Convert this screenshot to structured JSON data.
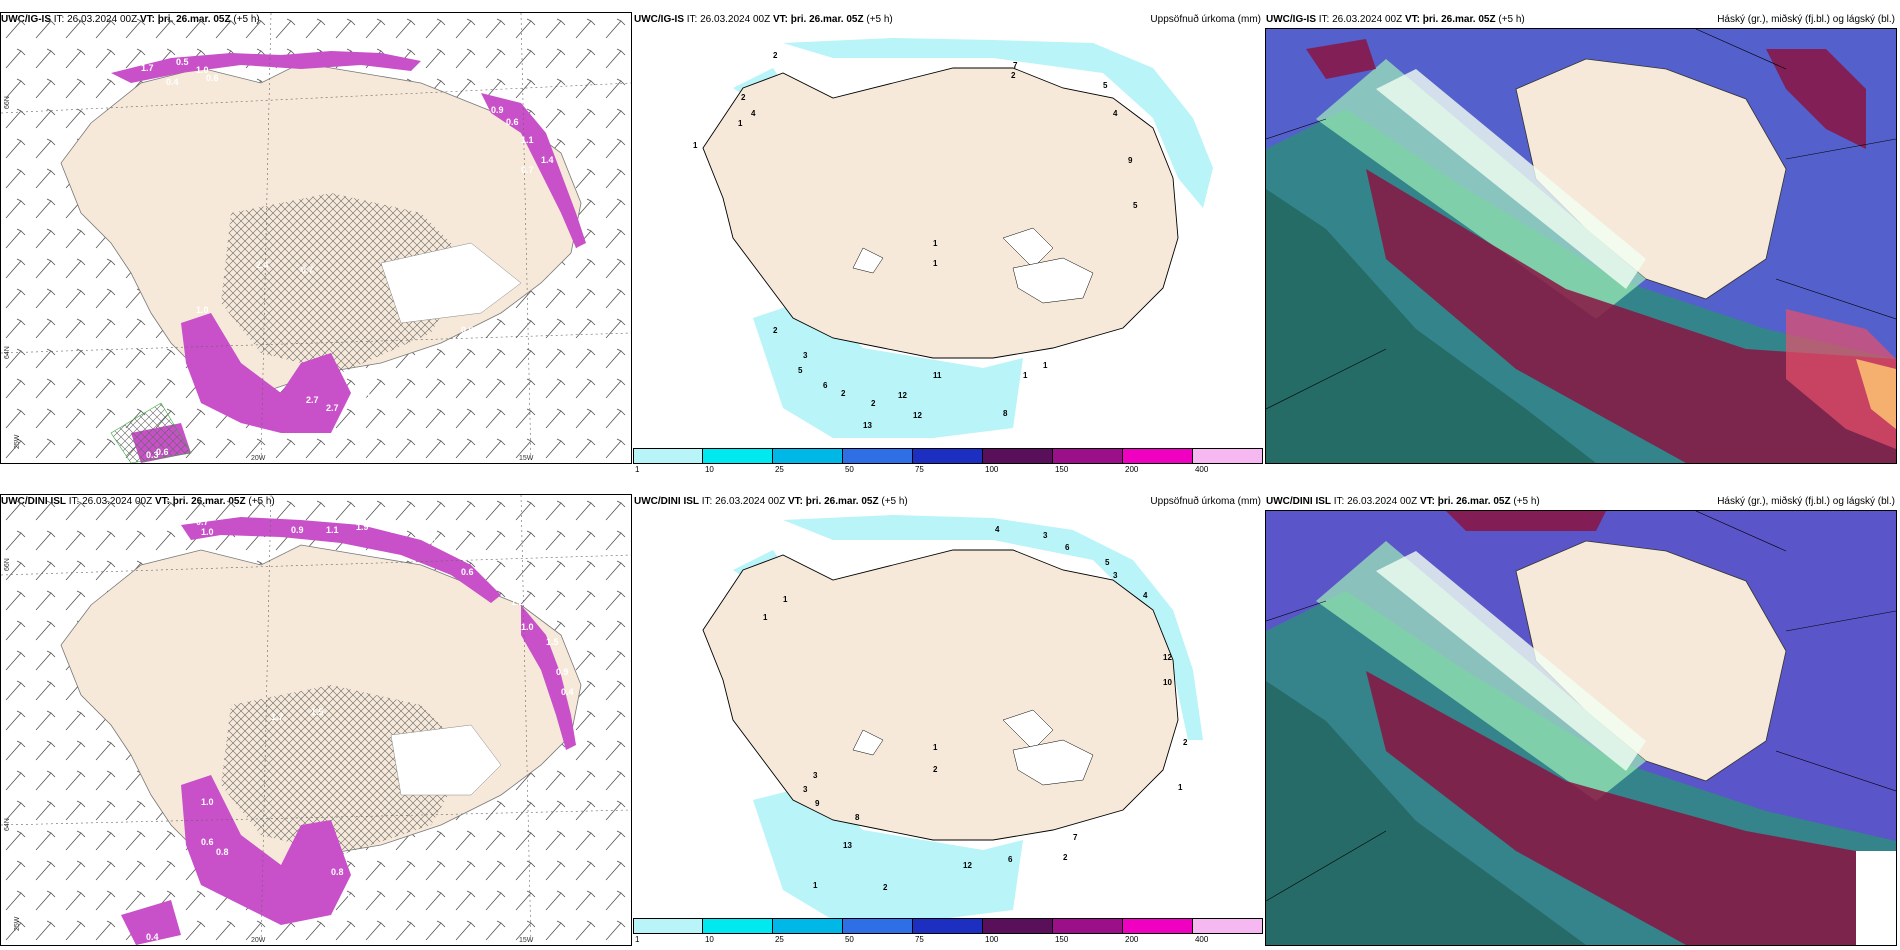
{
  "rows": [
    {
      "model": "UWC/IG-IS",
      "it_label": "IT:",
      "it_value": "26.03.2024 00Z",
      "vt_label": "VT:",
      "vt_value": "þri. 26.mar. 05Z",
      "lead": "(+5 h)",
      "precip_title": "Uppsöfnuð úrkoma (mm)",
      "cloud_title": "Háský (gr.), miðský (fj.bl.) og lágský (bl.)"
    },
    {
      "model": "UWC/DINI ISL",
      "it_label": "IT:",
      "it_value": "26.03.2024 00Z",
      "vt_label": "VT:",
      "vt_value": "þri. 26.mar. 05Z",
      "lead": "(+5 h)",
      "precip_title": "Uppsöfnuð úrkoma (mm)",
      "cloud_title": "Háský (gr.), miðský (fj.bl.) og lágský (bl.)"
    }
  ],
  "lat_labels": [
    "66N",
    "64N"
  ],
  "lon_labels": [
    "25W",
    "20W",
    "15W"
  ],
  "precip_colorbar": {
    "ticks": [
      "1",
      "10",
      "25",
      "50",
      "75",
      "100",
      "150",
      "200",
      "400"
    ],
    "colors": [
      "#b8f4f8",
      "#00e8f0",
      "#00b8e8",
      "#2e6fe6",
      "#1c2fc0",
      "#5a0f5a",
      "#9b0f88",
      "#f000c0",
      "#f5b8f0"
    ]
  },
  "row1_left_labels": [
    "1.7",
    "0.5",
    "1.0",
    "0.6",
    "0.4",
    "0.9",
    "0.6",
    "1.1",
    "1.4",
    "2.4",
    "0.7",
    "1.0",
    "2.7",
    "2.7",
    "1.6",
    "0.3",
    "0.6",
    "1.5",
    "0.6",
    "0.7"
  ],
  "row1_mid_labels": [
    "2",
    "2",
    "1",
    "4",
    "1",
    "7",
    "2",
    "5",
    "4",
    "9",
    "5",
    "1",
    "1",
    "2",
    "3",
    "5",
    "6",
    "2",
    "12",
    "12",
    "13",
    "11",
    "1",
    "8",
    "2",
    "1"
  ],
  "row2_left_labels": [
    "0.7",
    "1.0",
    "0.9",
    "1.1",
    "1.9",
    "1.8",
    "1.5",
    "0.3",
    "1.0",
    "0.6",
    "1.2",
    "1.0",
    "1.5",
    "0.9",
    "0.4",
    "1.5",
    "1.7",
    "0.6",
    "0.8",
    "0.4",
    "1.0",
    "0.8",
    "1.3"
  ],
  "row2_mid_labels": [
    "4",
    "3",
    "6",
    "5",
    "3",
    "4",
    "12",
    "10",
    "2",
    "1",
    "2",
    "1",
    "1",
    "3",
    "3",
    "9",
    "8",
    "13",
    "12",
    "6",
    "7",
    "2",
    "2",
    "1",
    "1"
  ],
  "colors": {
    "land": "#f6e9d9",
    "sea": "#ffffff",
    "snow_purple": "#c850c8",
    "cyan_precip": "#b8f4f8"
  }
}
